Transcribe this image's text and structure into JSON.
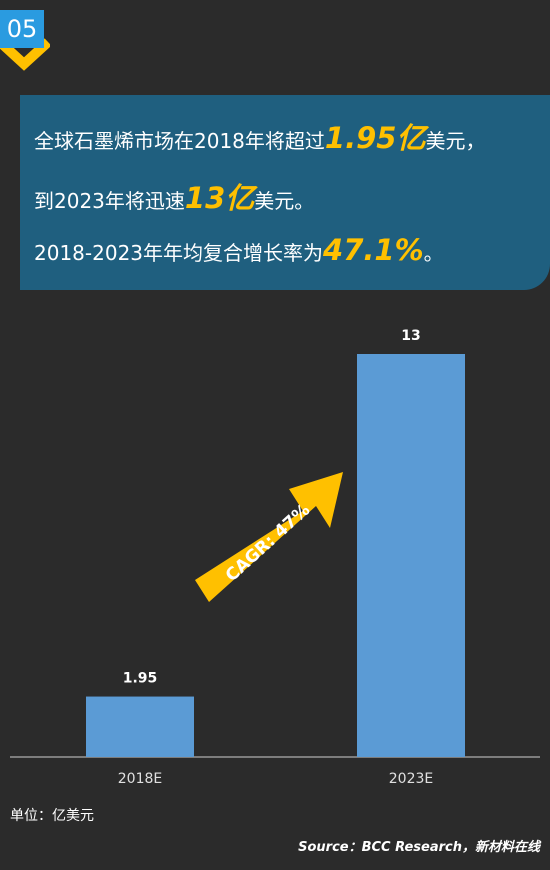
{
  "badge": {
    "number": "05"
  },
  "headline": {
    "line1_pre": "全球石墨烯市场在2018年将超过",
    "line1_value": "1.95亿",
    "line1_post": "美元，",
    "line2_pre": "到2023年将迅速",
    "line2_value": "13亿",
    "line2_post": "美元。",
    "line3_pre": "2018-2023年年均复合增长率为",
    "line3_value": "47.1%",
    "line3_post": "。"
  },
  "arrow_label": "CAGR: 47%",
  "unit_label": "单位：亿美元",
  "source": "Source：BCC Research，新材料在线",
  "colors": {
    "bar": "#5b9bd5",
    "arrow": "#ffc000",
    "banner": "#1f5f7f",
    "badge": "#2a9be0",
    "background": "#2b2b2b"
  },
  "chart_data": {
    "type": "bar",
    "categories": [
      "2018E",
      "2023E"
    ],
    "values": [
      1.95,
      13
    ],
    "data_labels": [
      "1.95",
      "13"
    ],
    "ylim": [
      0,
      13
    ],
    "grid": false,
    "axis_line": "x"
  }
}
